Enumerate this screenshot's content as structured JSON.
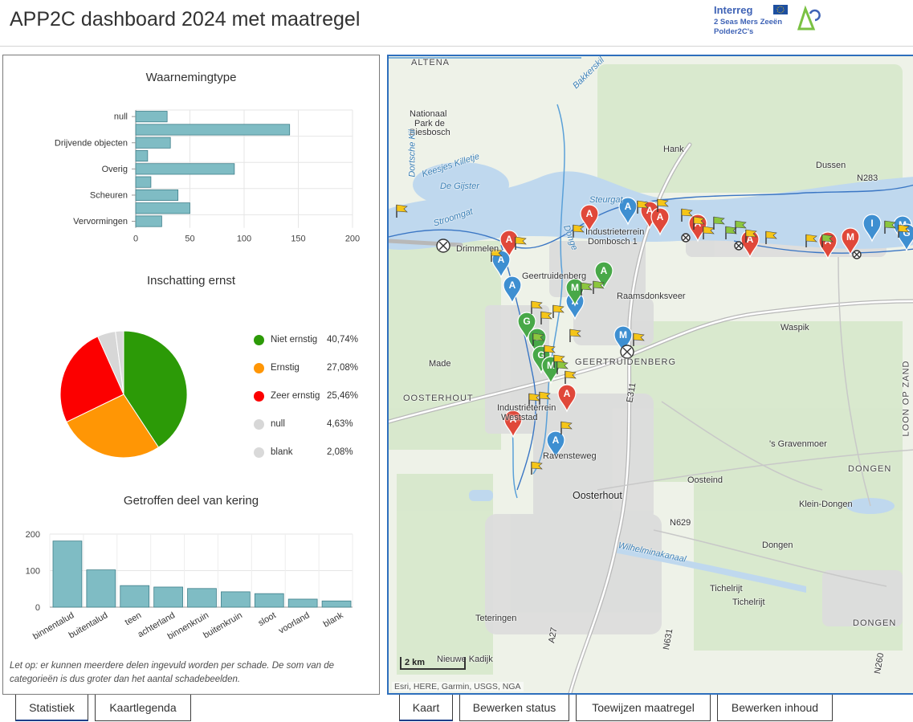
{
  "header": {
    "title": "APP2C dashboard 2024 met maatregel",
    "logo": {
      "line1": "Interreg",
      "line2": "2 Seas Mers Zeeën",
      "line3": "Polder2C's"
    }
  },
  "charts": {
    "waarneming": {
      "title": "Waarnemingtype",
      "chart_data": {
        "type": "bar",
        "orientation": "horizontal",
        "title": "Waarnemingtype",
        "categories": [
          "null",
          "",
          "Drijvende objecten",
          "",
          "Overig",
          "",
          "Scheuren",
          "",
          "Vervormingen"
        ],
        "values": [
          29,
          142,
          32,
          11,
          91,
          14,
          39,
          50,
          24
        ],
        "xlim": [
          0,
          200
        ],
        "xticks": [
          "0",
          "50",
          "100",
          "150",
          "200"
        ],
        "color": "#7fbcc4"
      }
    },
    "ernst": {
      "title": "Inschatting ernst",
      "chart_data": {
        "type": "pie",
        "title": "Inschatting ernst",
        "slices": [
          {
            "label": "Niet ernstig",
            "value": 40.74,
            "pct": "40,74%",
            "color": "#2c9a07"
          },
          {
            "label": "Ernstig",
            "value": 27.08,
            "pct": "27,08%",
            "color": "#ff9605"
          },
          {
            "label": "Zeer ernstig",
            "value": 25.46,
            "pct": "25,46%",
            "color": "#fc0000"
          },
          {
            "label": "null",
            "value": 4.63,
            "pct": "4,63%",
            "color": "#d7d7d7"
          },
          {
            "label": "blank",
            "value": 2.08,
            "pct": "2,08%",
            "color": "#d9d9d9"
          }
        ],
        "legend": "right"
      }
    },
    "kering": {
      "title": "Getroffen deel van kering",
      "chart_data": {
        "type": "bar",
        "title": "Getroffen deel van kering",
        "categories": [
          "binnentalud",
          "buitentalud",
          "teen",
          "achterland",
          "binnenkruin",
          "buitenkruin",
          "sloot",
          "voorland",
          "blank"
        ],
        "values": [
          181,
          102,
          59,
          55,
          51,
          42,
          37,
          22,
          17
        ],
        "ylim": [
          0,
          200
        ],
        "yticks": [
          "0",
          "100",
          "200"
        ],
        "color": "#7fbcc4"
      }
    }
  },
  "note": "Let op: er kunnen meerdere delen ingevuld worden per schade. De som van de categorieën is dus groter dan het aantal schadebeelden.",
  "left_tabs": [
    "Statistiek",
    "Kaartlegenda"
  ],
  "right_tabs": [
    "Kaart",
    "Bewerken status",
    "Toewijzen maatregel",
    "Bewerken inhoud"
  ],
  "map": {
    "places": [
      {
        "name": "ALTENA",
        "cls": "road"
      },
      {
        "name": "Nationaal",
        "cls": ""
      },
      {
        "name": "Park de",
        "cls": ""
      },
      {
        "name": "Biesbosch",
        "cls": ""
      },
      {
        "name": "Hank",
        "cls": ""
      },
      {
        "name": "Dussen",
        "cls": ""
      },
      {
        "name": "N283",
        "cls": ""
      },
      {
        "name": "De Gijster",
        "cls": "water"
      },
      {
        "name": "Keesjes Killetje",
        "cls": "water"
      },
      {
        "name": "Stroomgat",
        "cls": "water"
      },
      {
        "name": "Drimmelen",
        "cls": ""
      },
      {
        "name": "Industrieterrein",
        "cls": ""
      },
      {
        "name": "Dombosch 1",
        "cls": ""
      },
      {
        "name": "Geertruidenberg",
        "cls": ""
      },
      {
        "name": "Raamsdonksveer",
        "cls": ""
      },
      {
        "name": "Waspik",
        "cls": ""
      },
      {
        "name": "Made",
        "cls": ""
      },
      {
        "name": "GEERTRUIDENBERG",
        "cls": "road"
      },
      {
        "name": "OOSTERHOUT",
        "cls": "road"
      },
      {
        "name": "Industrieterrein",
        "cls": ""
      },
      {
        "name": "Weststad",
        "cls": ""
      },
      {
        "name": "E311",
        "cls": ""
      },
      {
        "name": "'s Gravenmoer",
        "cls": ""
      },
      {
        "name": "LOON OP ZAND",
        "cls": "road"
      },
      {
        "name": "DONGEN",
        "cls": "road"
      },
      {
        "name": "Oosteind",
        "cls": ""
      },
      {
        "name": "Klein-Dongen",
        "cls": ""
      },
      {
        "name": "Oosterhout",
        "cls": "big"
      },
      {
        "name": "Dongen",
        "cls": ""
      },
      {
        "name": "Wilhelminakanaal",
        "cls": "water"
      },
      {
        "name": "Tichelrijt",
        "cls": ""
      },
      {
        "name": "Tichelrijt",
        "cls": ""
      },
      {
        "name": "Teteringen",
        "cls": ""
      },
      {
        "name": "DONGEN",
        "cls": "road"
      },
      {
        "name": "Nieuwe Kadijk",
        "cls": ""
      },
      {
        "name": "Bakkerskil",
        "cls": "water"
      },
      {
        "name": "Donge",
        "cls": "water"
      },
      {
        "name": "Dortsche Kil",
        "cls": "water"
      },
      {
        "name": "Steurgat",
        "cls": "water"
      },
      {
        "name": "N629",
        "cls": ""
      },
      {
        "name": "N631",
        "cls": ""
      },
      {
        "name": "N260",
        "cls": ""
      },
      {
        "name": "A27",
        "cls": ""
      },
      {
        "name": "Ravensteweg",
        "cls": ""
      }
    ],
    "scalebar": "2 km",
    "attribution": "Esri, HERE, Garmin, USGS, NGA"
  }
}
